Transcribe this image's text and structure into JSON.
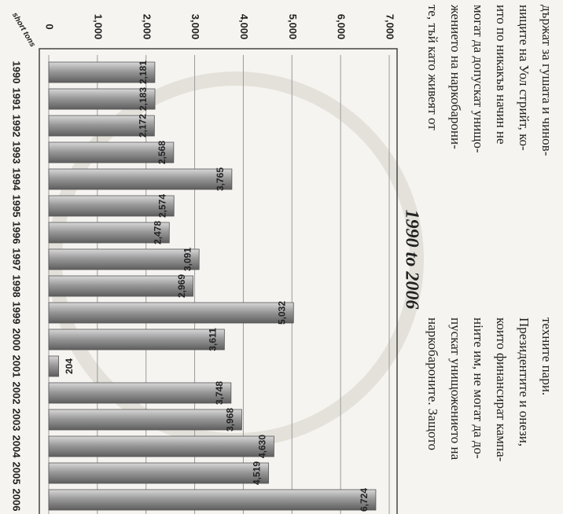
{
  "chart_data": {
    "type": "bar",
    "orientation": "horizontal",
    "title": "1990 to 2006",
    "y_label": "short tons",
    "categories": [
      "1990",
      "1991",
      "1992",
      "1993",
      "1994",
      "1995",
      "1996",
      "1997",
      "1998",
      "1999",
      "2000",
      "2001",
      "2002",
      "2003",
      "2004",
      "2005",
      "2006"
    ],
    "values": [
      2181,
      2183,
      2172,
      2568,
      3765,
      2574,
      2478,
      3091,
      2969,
      5032,
      3611,
      204,
      3748,
      3968,
      4630,
      4519,
      6724
    ],
    "value_labels": [
      "2,181",
      "2,183",
      "2,172",
      "2,568",
      "3,765",
      "2,574",
      "2,478",
      "3,091",
      "2,969",
      "5,032",
      "3,611",
      "204",
      "3,748",
      "3,968",
      "4,630",
      "4,519",
      "6,724"
    ],
    "color": "#8c8c8c",
    "ylim": [
      0,
      7000
    ],
    "yticks": [
      0,
      {
        "value": 1000,
        "label": "1,000"
      },
      {
        "value": 2000,
        "label": "2,000"
      },
      {
        "value": 3000,
        "label": "3,000"
      },
      {
        "value": 4000,
        "label": "4,000"
      },
      {
        "value": 5000,
        "label": "5,000"
      },
      {
        "value": 6000,
        "label": "6,000"
      },
      {
        "value": 7000,
        "label": "7,000"
      }
    ],
    "grid": true
  },
  "page_text": {
    "column_top": [
      "държат за гушата и чинов-",
      "ниците на Уол стрийт, ко-",
      "ито по никакъв начин не",
      "могат да допускат унищо-",
      "жението на наркобарони-",
      "те, тъй като живеят от"
    ],
    "column_bottom": [
      "техните пари.",
      "Президентите и онези,",
      "които финансират кампа-",
      "нiите им, не могат да до-",
      "пускат унищожението на",
      "наркобароните. Защото"
    ]
  }
}
